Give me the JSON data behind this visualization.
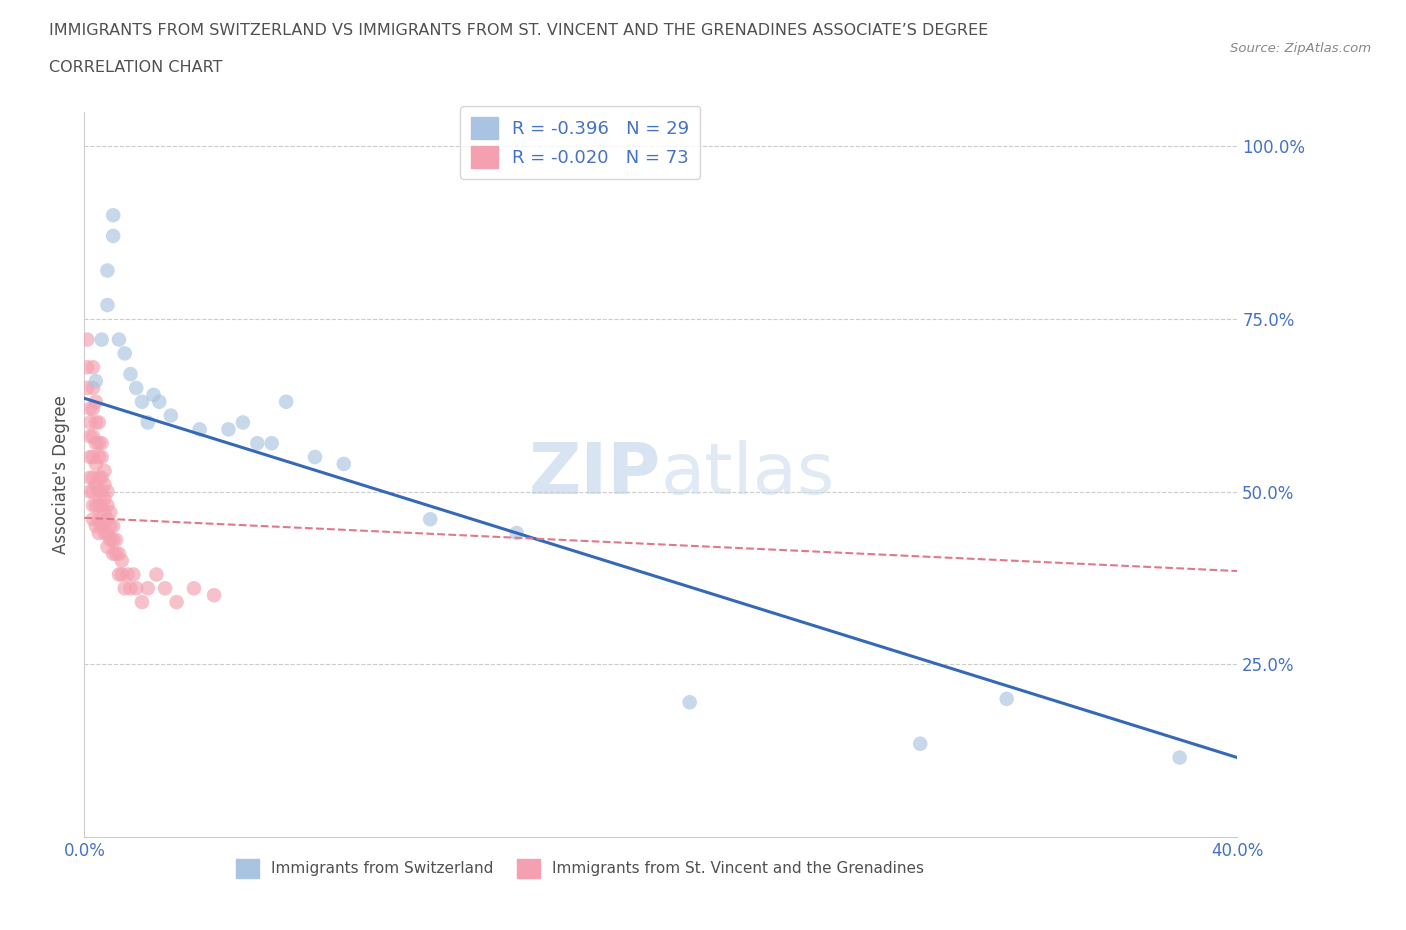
{
  "title_line1": "IMMIGRANTS FROM SWITZERLAND VS IMMIGRANTS FROM ST. VINCENT AND THE GRENADINES ASSOCIATE’S DEGREE",
  "title_line2": "CORRELATION CHART",
  "source": "Source: ZipAtlas.com",
  "ylabel": "Associate's Degree",
  "xlim": [
    0.0,
    0.4
  ],
  "ylim": [
    0.0,
    1.05
  ],
  "r_switzerland": -0.396,
  "n_switzerland": 29,
  "r_stv": -0.02,
  "n_stv": 73,
  "color_switzerland": "#a8c4e0",
  "color_stv": "#f4a0b0",
  "trendline_switzerland_color": "#3569b8",
  "trendline_stv_color": "#e07888",
  "watermark_zip": "ZIP",
  "watermark_atlas": "atlas",
  "grid_color": "#cccccc",
  "background_color": "#ffffff",
  "title_color": "#505050",
  "tick_color": "#4472c4",
  "sw_trend_x0": 0.0,
  "sw_trend_y0": 0.635,
  "sw_trend_x1": 0.4,
  "sw_trend_y1": 0.115,
  "stv_trend_x0": 0.0,
  "stv_trend_y0": 0.462,
  "stv_trend_x1": 0.4,
  "stv_trend_y1": 0.385,
  "sw_x": [
    0.004,
    0.006,
    0.008,
    0.008,
    0.01,
    0.01,
    0.012,
    0.014,
    0.016,
    0.018,
    0.02,
    0.022,
    0.024,
    0.026,
    0.03,
    0.04,
    0.05,
    0.055,
    0.06,
    0.065,
    0.07,
    0.08,
    0.09,
    0.12,
    0.15,
    0.21,
    0.29,
    0.32,
    0.38
  ],
  "sw_y": [
    0.66,
    0.72,
    0.77,
    0.82,
    0.87,
    0.9,
    0.72,
    0.7,
    0.67,
    0.65,
    0.63,
    0.6,
    0.64,
    0.63,
    0.61,
    0.59,
    0.59,
    0.6,
    0.57,
    0.57,
    0.63,
    0.55,
    0.54,
    0.46,
    0.44,
    0.195,
    0.135,
    0.2,
    0.115
  ],
  "stv_x": [
    0.001,
    0.001,
    0.001,
    0.002,
    0.002,
    0.002,
    0.002,
    0.002,
    0.002,
    0.003,
    0.003,
    0.003,
    0.003,
    0.003,
    0.003,
    0.003,
    0.003,
    0.003,
    0.004,
    0.004,
    0.004,
    0.004,
    0.004,
    0.004,
    0.004,
    0.005,
    0.005,
    0.005,
    0.005,
    0.005,
    0.005,
    0.005,
    0.005,
    0.006,
    0.006,
    0.006,
    0.006,
    0.006,
    0.006,
    0.007,
    0.007,
    0.007,
    0.007,
    0.007,
    0.008,
    0.008,
    0.008,
    0.008,
    0.008,
    0.009,
    0.009,
    0.009,
    0.01,
    0.01,
    0.01,
    0.011,
    0.011,
    0.012,
    0.012,
    0.013,
    0.013,
    0.014,
    0.015,
    0.016,
    0.017,
    0.018,
    0.02,
    0.022,
    0.025,
    0.028,
    0.032,
    0.038,
    0.045
  ],
  "stv_y": [
    0.72,
    0.68,
    0.65,
    0.62,
    0.6,
    0.58,
    0.55,
    0.52,
    0.5,
    0.68,
    0.65,
    0.62,
    0.58,
    0.55,
    0.52,
    0.5,
    0.48,
    0.46,
    0.63,
    0.6,
    0.57,
    0.54,
    0.51,
    0.48,
    0.45,
    0.6,
    0.57,
    0.55,
    0.52,
    0.5,
    0.48,
    0.46,
    0.44,
    0.57,
    0.55,
    0.52,
    0.5,
    0.48,
    0.45,
    0.53,
    0.51,
    0.49,
    0.47,
    0.44,
    0.5,
    0.48,
    0.46,
    0.44,
    0.42,
    0.47,
    0.45,
    0.43,
    0.45,
    0.43,
    0.41,
    0.43,
    0.41,
    0.41,
    0.38,
    0.4,
    0.38,
    0.36,
    0.38,
    0.36,
    0.38,
    0.36,
    0.34,
    0.36,
    0.38,
    0.36,
    0.34,
    0.36,
    0.35
  ]
}
